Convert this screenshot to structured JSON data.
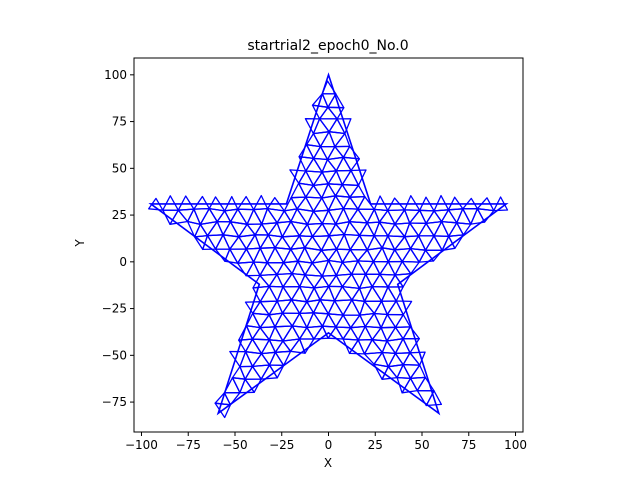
{
  "chart_data": {
    "type": "mesh",
    "title": "startrial2_epoch0_No.0",
    "xlabel": "X",
    "ylabel": "Y",
    "xlim": [
      -104,
      104
    ],
    "ylim": [
      -91,
      109
    ],
    "xticks": [
      -100,
      -75,
      -50,
      -25,
      0,
      25,
      50,
      75,
      100
    ],
    "xtick_labels": [
      "−100",
      "−75",
      "−50",
      "−25",
      "0",
      "25",
      "50",
      "75",
      "100"
    ],
    "yticks": [
      -75,
      -50,
      -25,
      0,
      25,
      50,
      75,
      100
    ],
    "ytick_labels": [
      "−75",
      "−50",
      "−25",
      "0",
      "25",
      "50",
      "75",
      "100"
    ],
    "grid": false,
    "mesh_color": "#0000ff",
    "outline": {
      "shape": "five-pointed star",
      "vertices": [
        [
          0,
          100
        ],
        [
          22.5,
          31
        ],
        [
          95,
          31
        ],
        [
          37,
          -12
        ],
        [
          59,
          -81
        ],
        [
          0,
          -38
        ],
        [
          -59,
          -81
        ],
        [
          -37,
          -12
        ],
        [
          -95,
          31
        ],
        [
          -22.5,
          31
        ]
      ]
    },
    "mesh_spacing": 8
  }
}
